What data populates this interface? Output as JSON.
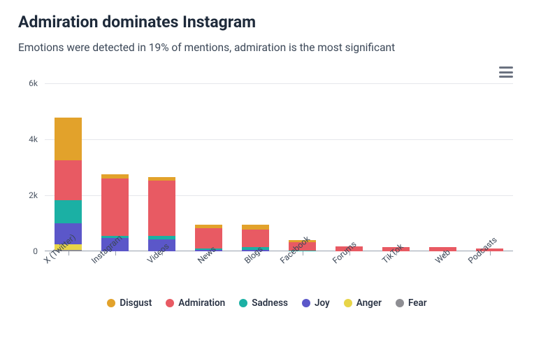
{
  "title": "Admiration dominates Instagram",
  "subtitle": "Emotions were detected in 19% of mentions, admiration is the most significant",
  "chart": {
    "type": "stacked-bar",
    "y_axis": {
      "min": 0,
      "max": 6000,
      "ticks": [
        0,
        2000,
        4000,
        6000
      ],
      "tick_labels": [
        "0",
        "2k",
        "4k",
        "6k"
      ]
    },
    "categories": [
      "X (Twitter)",
      "Instagram",
      "Videos",
      "News",
      "Blogs",
      "Facebook",
      "Forums",
      "TikTok",
      "Web",
      "Podcasts"
    ],
    "series": [
      {
        "name": "Fear",
        "color": "#8e8e93",
        "values": [
          60,
          0,
          0,
          0,
          0,
          0,
          0,
          0,
          0,
          0
        ]
      },
      {
        "name": "Anger",
        "color": "#e8d548",
        "values": [
          180,
          0,
          0,
          0,
          0,
          0,
          0,
          0,
          0,
          0
        ]
      },
      {
        "name": "Joy",
        "color": "#5b57c9",
        "values": [
          760,
          470,
          420,
          40,
          40,
          0,
          0,
          0,
          0,
          0
        ]
      },
      {
        "name": "Sadness",
        "color": "#1bb0a4",
        "values": [
          820,
          80,
          140,
          60,
          100,
          30,
          0,
          0,
          0,
          0
        ]
      },
      {
        "name": "Admiration",
        "color": "#e85a63",
        "values": [
          1420,
          2060,
          1960,
          720,
          640,
          300,
          170,
          160,
          150,
          100
        ]
      },
      {
        "name": "Disgust",
        "color": "#e2a22b",
        "values": [
          1540,
          140,
          120,
          120,
          180,
          70,
          0,
          0,
          0,
          0
        ]
      }
    ],
    "legend_order": [
      "Disgust",
      "Admiration",
      "Sadness",
      "Joy",
      "Anger",
      "Fear"
    ],
    "bar_width_ratio": 0.58,
    "grid_color": "#e5e7eb",
    "axis_color": "#9aa2af",
    "label_fontsize": 12,
    "background_color": "#ffffff",
    "x_label_rotation": -42
  }
}
